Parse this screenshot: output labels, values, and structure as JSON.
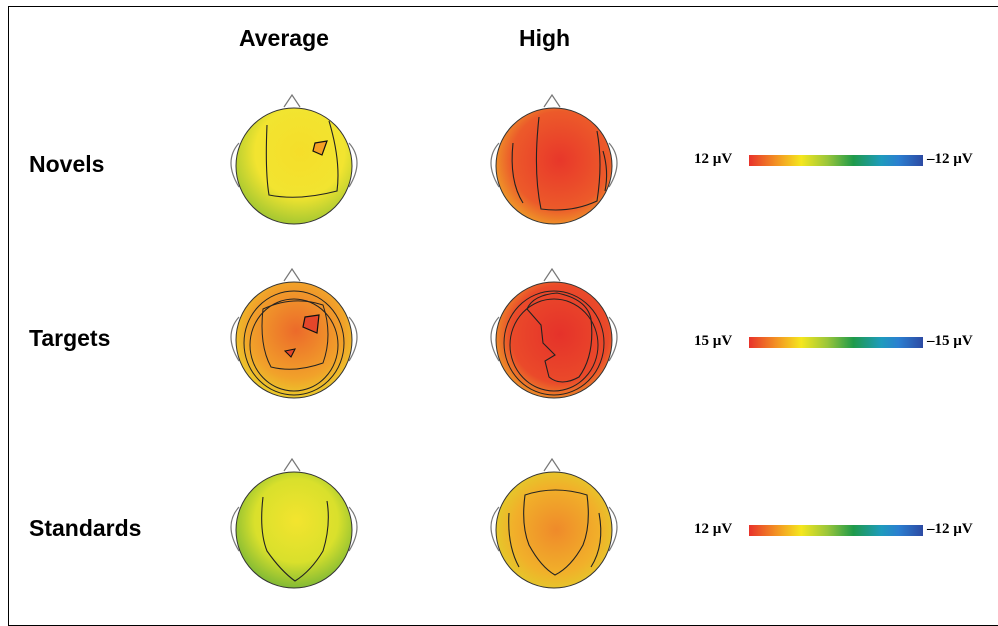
{
  "columns": [
    "Average",
    "High"
  ],
  "rows": [
    {
      "label": "Novels",
      "scale": {
        "max": "12 µV",
        "min": "–12 µV"
      },
      "maps": [
        {
          "condition": "Average",
          "center_color": "#f5de2a",
          "edge_color": "#8dbf32"
        },
        {
          "condition": "High",
          "center_color": "#e8372a",
          "edge_color": "#f0c828"
        }
      ]
    },
    {
      "label": "Targets",
      "scale": {
        "max": "15 µV",
        "min": "–15 µV"
      },
      "maps": [
        {
          "condition": "Average",
          "center_color": "#ec6a2a",
          "edge_color": "#e8e22c"
        },
        {
          "condition": "High",
          "center_color": "#e5322a",
          "edge_color": "#f0c828"
        }
      ]
    },
    {
      "label": "Standards",
      "scale": {
        "max": "12 µV",
        "min": "–12 µV"
      },
      "maps": [
        {
          "condition": "Average",
          "center_color": "#f3e42e",
          "edge_color": "#4aa23a"
        },
        {
          "condition": "High",
          "center_color": "#ef8a2a",
          "edge_color": "#d8e02c"
        }
      ]
    }
  ]
}
